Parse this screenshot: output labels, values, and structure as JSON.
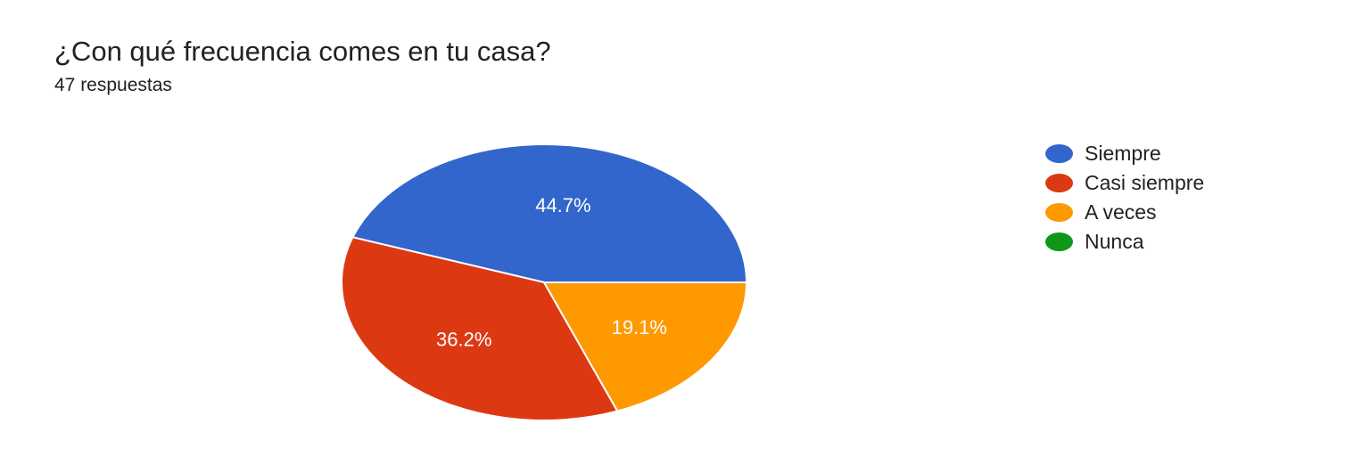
{
  "chart_data": {
    "type": "pie",
    "title": "¿Con qué frecuencia comes en tu casa?",
    "subtitle": "47 respuestas",
    "categories": [
      "Siempre",
      "Casi siempre",
      "A veces",
      "Nunca"
    ],
    "values": [
      44.7,
      36.2,
      19.1,
      0
    ],
    "labels": [
      "44.7%",
      "36.2%",
      "19.1%",
      ""
    ],
    "colors": [
      "#3366cc",
      "#dc3912",
      "#ff9900",
      "#109618"
    ],
    "legend_position": "right"
  }
}
